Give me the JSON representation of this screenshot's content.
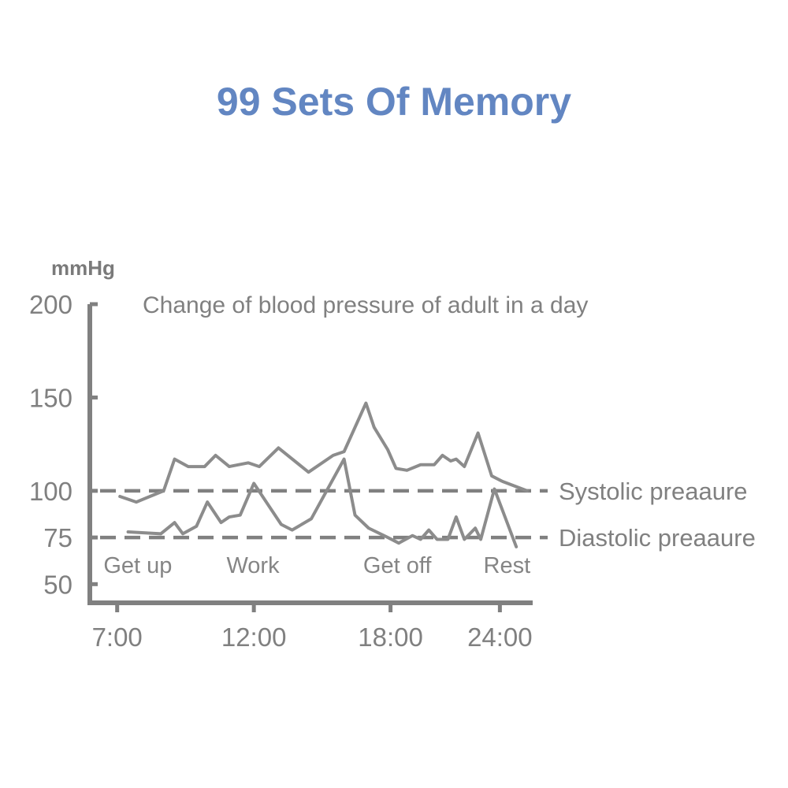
{
  "headline": "99 Sets Of Memory",
  "colors": {
    "headline": "#6286c2",
    "axis": "#808080",
    "series": "#8c8c8c"
  },
  "chart_data": {
    "type": "line",
    "title": "Change of blood pressure of adult in a day",
    "ylabel": "mmHg",
    "xlabel": "",
    "ylim": [
      40,
      200
    ],
    "xlim": [
      6,
      22.2
    ],
    "yticks": [
      {
        "value": 200,
        "label": "200"
      },
      {
        "value": 150,
        "label": "150"
      },
      {
        "value": 100,
        "label": "100"
      },
      {
        "value": 75,
        "label": "75"
      },
      {
        "value": 50,
        "label": "50"
      }
    ],
    "xticks": [
      {
        "value": 7,
        "label": "7:00"
      },
      {
        "value": 12,
        "label": "12:00"
      },
      {
        "value": 17,
        "label": "18:00"
      },
      {
        "value": 21,
        "label": "24:00"
      }
    ],
    "reference_lines": [
      {
        "value": 100,
        "label": "Systolic preaaure"
      },
      {
        "value": 75,
        "label": "Diastolic preaaure"
      }
    ],
    "annotations": [
      {
        "x": 6.5,
        "label": "Get up"
      },
      {
        "x": 11,
        "label": "Work"
      },
      {
        "x": 16,
        "label": "Get off"
      },
      {
        "x": 20.4,
        "label": "Rest"
      }
    ],
    "grid": false,
    "series": [
      {
        "x": [
          7.1,
          7.7,
          8.7,
          9.1,
          9.6,
          10.2,
          10.6,
          11.1,
          11.8,
          12.2,
          12.9,
          14.0,
          14.9,
          15.3,
          16.1,
          16.4,
          16.9,
          17.2,
          17.6,
          18.1,
          18.6,
          18.9,
          19.2,
          19.4,
          19.7,
          20.2,
          20.7,
          21.1,
          22.0
        ],
        "values": [
          97,
          94,
          100,
          117,
          113,
          113,
          119,
          113,
          115,
          113,
          123,
          110,
          119,
          121,
          147,
          134,
          122,
          112,
          111,
          114,
          114,
          119,
          116,
          117,
          113,
          131,
          108,
          105,
          100
        ]
      },
      {
        "x": [
          7.4,
          8.6,
          9.1,
          9.4,
          9.9,
          10.3,
          10.8,
          11.1,
          11.5,
          12.0,
          13.0,
          13.4,
          14.1,
          15.3,
          15.7,
          16.2,
          16.9,
          17.3,
          17.8,
          18.1,
          18.4,
          18.7,
          19.1,
          19.4,
          19.7,
          20.1,
          20.3,
          20.8,
          21.6
        ],
        "values": [
          78,
          77,
          83,
          77,
          81,
          94,
          83,
          86,
          87,
          104,
          82,
          79,
          85,
          117,
          87,
          80,
          75,
          72,
          76,
          74,
          79,
          74,
          74,
          86,
          74,
          80,
          74,
          101,
          70
        ]
      }
    ]
  }
}
